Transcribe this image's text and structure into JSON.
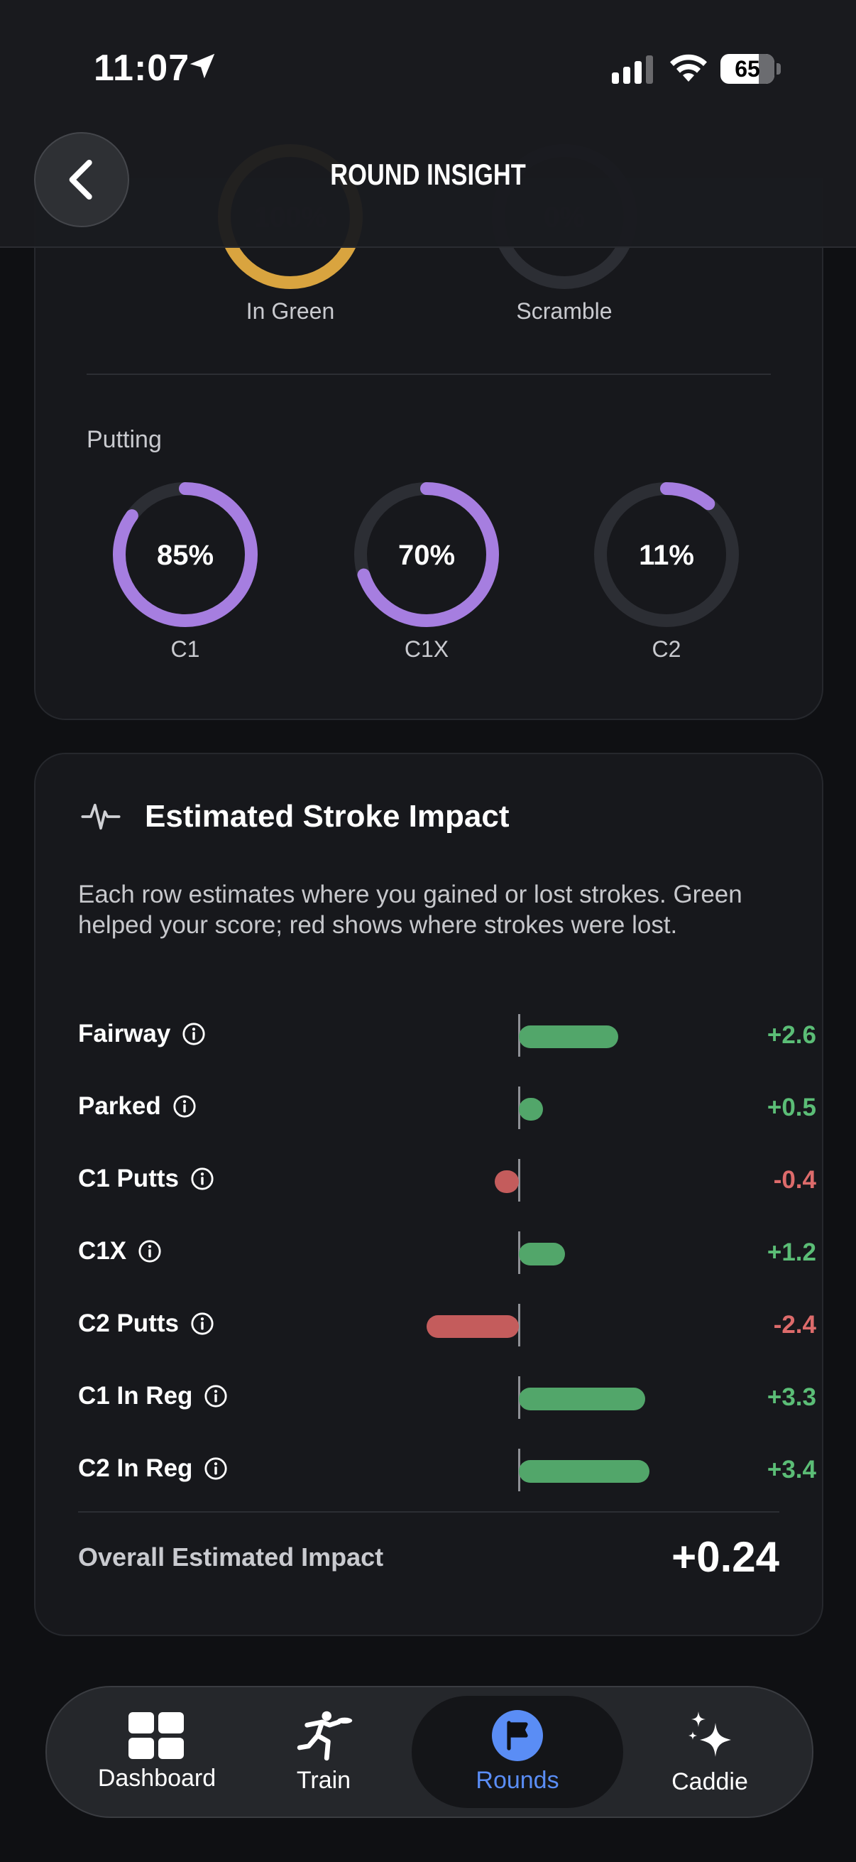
{
  "status_bar": {
    "time": "11:07",
    "battery": "65"
  },
  "header": {
    "title": "ROUND INSIGHT"
  },
  "approach": {
    "rings": [
      {
        "label": "In Green",
        "percent": "100%",
        "value": 1.0,
        "color": "#d9a43f"
      },
      {
        "label": "Scramble",
        "percent": "0%",
        "value": 0.0,
        "color": "#d9a43f"
      }
    ]
  },
  "putting": {
    "title": "Putting",
    "rings": [
      {
        "label": "C1",
        "percent": "85%",
        "value": 0.85,
        "color": "#a67ee0"
      },
      {
        "label": "C1X",
        "percent": "70%",
        "value": 0.7,
        "color": "#a67ee0"
      },
      {
        "label": "C2",
        "percent": "11%",
        "value": 0.11,
        "color": "#a67ee0"
      }
    ]
  },
  "impact": {
    "title": "Estimated Stroke Impact",
    "description": "Each row estimates where you gained or lost strokes. Green helped your score; red shows where strokes were lost.",
    "rows": [
      {
        "label": "Fairway",
        "value": 2.6,
        "display": "+2.6"
      },
      {
        "label": "Parked",
        "value": 0.5,
        "display": "+0.5"
      },
      {
        "label": "C1 Putts",
        "value": -0.4,
        "display": "-0.4"
      },
      {
        "label": "C1X",
        "value": 1.2,
        "display": "+1.2"
      },
      {
        "label": "C2 Putts",
        "value": -2.4,
        "display": "-2.4"
      },
      {
        "label": "C1 In Reg",
        "value": 3.3,
        "display": "+3.3"
      },
      {
        "label": "C2 In Reg",
        "value": 3.4,
        "display": "+3.4"
      }
    ],
    "overall_label": "Overall Estimated Impact",
    "overall_value": "+0.24"
  },
  "tabs": [
    {
      "label": "Dashboard",
      "icon": "dashboard-icon",
      "active": false
    },
    {
      "label": "Train",
      "icon": "train-icon",
      "active": false
    },
    {
      "label": "Rounds",
      "icon": "flag-icon",
      "active": true
    },
    {
      "label": "Caddie",
      "icon": "sparkles-icon",
      "active": false
    }
  ],
  "colors": {
    "positive": "#52a66a",
    "negative": "#c45c5c",
    "accent": "#5a8df5"
  }
}
